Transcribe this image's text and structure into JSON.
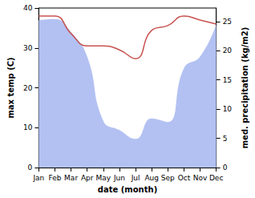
{
  "chart_data": {
    "type": "line",
    "x_label": "date (month)",
    "y_label": "max temp (C)",
    "y2_label": "med. precipitation (kg/m2)",
    "categories": [
      "Jan",
      "Feb",
      "Mar",
      "Apr",
      "May",
      "Jun",
      "Jul",
      "Aug",
      "Sep",
      "Oct",
      "Nov",
      "Dec"
    ],
    "series": [
      {
        "name": "med. precipitation",
        "type": "area",
        "axis": "y2",
        "color": "#b3c1f2",
        "values": [
          25.2,
          25.4,
          23.2,
          19.0,
          8.0,
          6.4,
          4.9,
          8.4,
          7.8,
          17.0,
          19.0,
          24.5
        ]
      },
      {
        "name": "max temp",
        "type": "line",
        "color": "#c8524f",
        "values": [
          38.0,
          38.0,
          33.6,
          30.5,
          30.5,
          29.5,
          27.3,
          34.4,
          35.6,
          38.0,
          37.0,
          36.0
        ]
      }
    ],
    "ylim": [
      0,
      40
    ],
    "yticks": [
      0,
      10,
      20,
      30,
      40
    ],
    "y2lim": [
      0,
      27.3
    ],
    "y2ticks": [
      0,
      5,
      10,
      15,
      20,
      25
    ],
    "grid": false
  }
}
